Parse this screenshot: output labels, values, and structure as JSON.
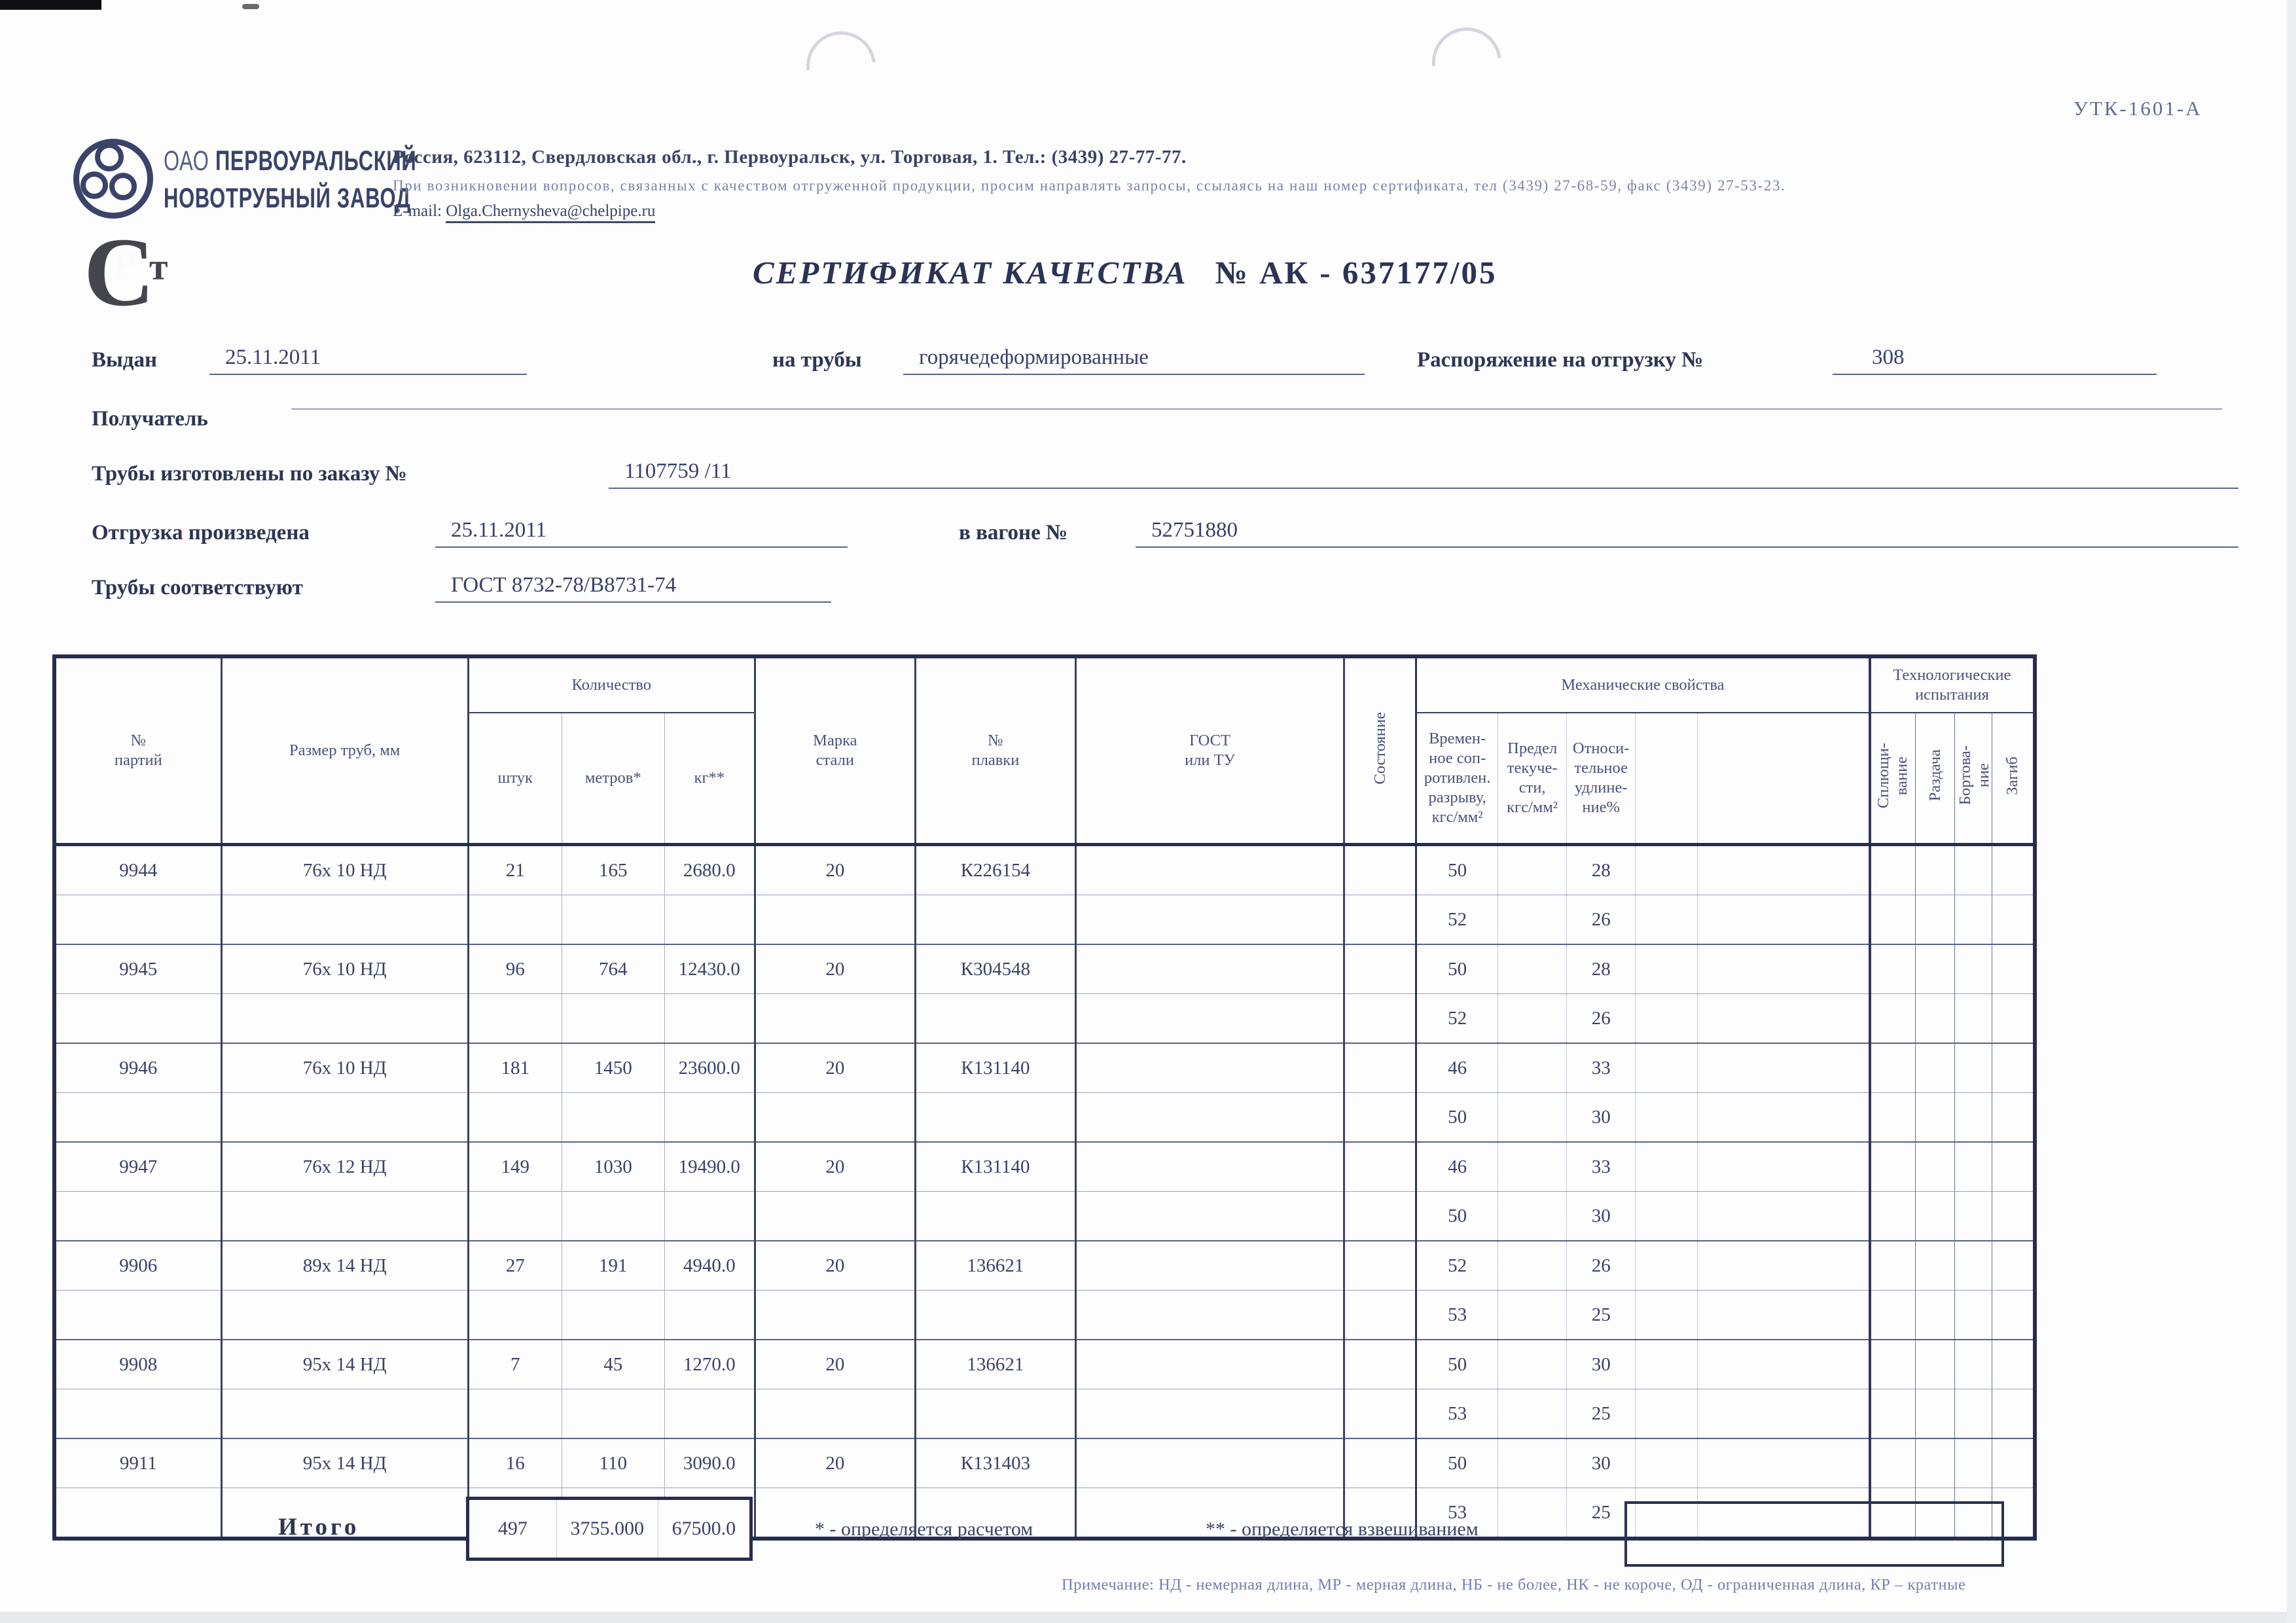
{
  "header": {
    "form_code": "УТК-1601-А",
    "company_prefix": "ОАО",
    "company_line1": "ПЕРВОУРАЛЬСКИЙ",
    "company_line2": "НОВОТРУБНЫЙ ЗАВОД",
    "address": "Россия, 623112, Свердловская обл., г. Первоуральск, ул. Торговая, 1. Тел.: (3439) 27-77-77.",
    "note": "При возникновении вопросов, связанных с качеством отгруженной продукции, просим направлять запросы, ссылаясь на наш номер сертификата, тел (3439) 27-68-59, факс (3439) 27-53-23.",
    "email_label": "E-mail:",
    "email": "Olga.Chernysheva@chelpipe.ru"
  },
  "title": {
    "text": "СЕРТИФИКАТ КАЧЕСТВА",
    "number": "№  АК - 637177/05"
  },
  "fields": {
    "issued_label": "Выдан",
    "issued_value": "25.11.2011",
    "pipes_label": "на трубы",
    "pipes_value": "горячедеформированные",
    "disp_label": "Распоряжение на отгрузку №",
    "disp_value": "308",
    "receiver_label": "Получатель",
    "receiver_value": "",
    "order_label": "Трубы изготовлены по заказу №",
    "order_value": "1107759  /11",
    "shipped_label": "Отгрузка произведена",
    "shipped_value": "25.11.2011",
    "wagon_label": "в вагоне №",
    "wagon_value": "52751880",
    "conform_label": "Трубы соответствуют",
    "conform_value": "ГОСТ 8732-78/В8731-74"
  },
  "table": {
    "headers": {
      "batch_no": "№\nпартий",
      "size": "Размер труб, мм",
      "qty": "Количество",
      "pcs": "штук",
      "meters": "метров*",
      "kg": "кг**",
      "steel": "Марка\nстали",
      "melt": "№\nплавки",
      "gost": "ГОСТ\nили ТУ",
      "state": "Состояние",
      "mech": "Механические свойства",
      "mech1": "Времен-\nное соп-\nротивлен.\nразрыву,\nкгс/мм²",
      "mech2": "Предел\nтекуче-\nсти,\nкгс/мм²",
      "mech3": "Относи-\nтельное\nудлине-\nние%",
      "tech": "Технологические\nиспытания",
      "tech1": "Сплющи-\nвание",
      "tech2": "Раздача",
      "tech3": "Бортова-\nние",
      "tech4": "Загиб"
    },
    "batches": [
      {
        "batch_no": "9944",
        "size": "76х 10 НД",
        "pcs": "21",
        "meters": "165",
        "kg": "2680.0",
        "steel": "20",
        "melt": "К226154",
        "mech": [
          [
            "50",
            "28"
          ],
          [
            "52",
            "26"
          ]
        ]
      },
      {
        "batch_no": "9945",
        "size": "76х 10 НД",
        "pcs": "96",
        "meters": "764",
        "kg": "12430.0",
        "steel": "20",
        "melt": "К304548",
        "mech": [
          [
            "50",
            "28"
          ],
          [
            "52",
            "26"
          ]
        ]
      },
      {
        "batch_no": "9946",
        "size": "76х 10 НД",
        "pcs": "181",
        "meters": "1450",
        "kg": "23600.0",
        "steel": "20",
        "melt": "К131140",
        "mech": [
          [
            "46",
            "33"
          ],
          [
            "50",
            "30"
          ]
        ]
      },
      {
        "batch_no": "9947",
        "size": "76х 12 НД",
        "pcs": "149",
        "meters": "1030",
        "kg": "19490.0",
        "steel": "20",
        "melt": "К131140",
        "mech": [
          [
            "46",
            "33"
          ],
          [
            "50",
            "30"
          ]
        ]
      },
      {
        "batch_no": "9906",
        "size": "89х 14 НД",
        "pcs": "27",
        "meters": "191",
        "kg": "4940.0",
        "steel": "20",
        "melt": "136621",
        "mech": [
          [
            "52",
            "26"
          ],
          [
            "53",
            "25"
          ]
        ]
      },
      {
        "batch_no": "9908",
        "size": "95х 14 НД",
        "pcs": "7",
        "meters": "45",
        "kg": "1270.0",
        "steel": "20",
        "melt": "136621",
        "mech": [
          [
            "50",
            "30"
          ],
          [
            "53",
            "25"
          ]
        ]
      },
      {
        "batch_no": "9911",
        "size": "95х 14 НД",
        "pcs": "16",
        "meters": "110",
        "kg": "3090.0",
        "steel": "20",
        "melt": "К131403",
        "mech": [
          [
            "50",
            "30"
          ],
          [
            "53",
            "25"
          ]
        ]
      }
    ],
    "totals": {
      "label": "Итого",
      "pcs": "497",
      "meters": "3755.000",
      "kg": "67500.0"
    },
    "footnotes": {
      "calc": "* - определяется расчетом",
      "weigh": "** - определяется взвешиванием"
    },
    "note": "Примечание: НД - немерная длина, МР - мерная длина, НБ - не более, НК - не короче, ОД - ограниченная длина, КР – кратные"
  }
}
